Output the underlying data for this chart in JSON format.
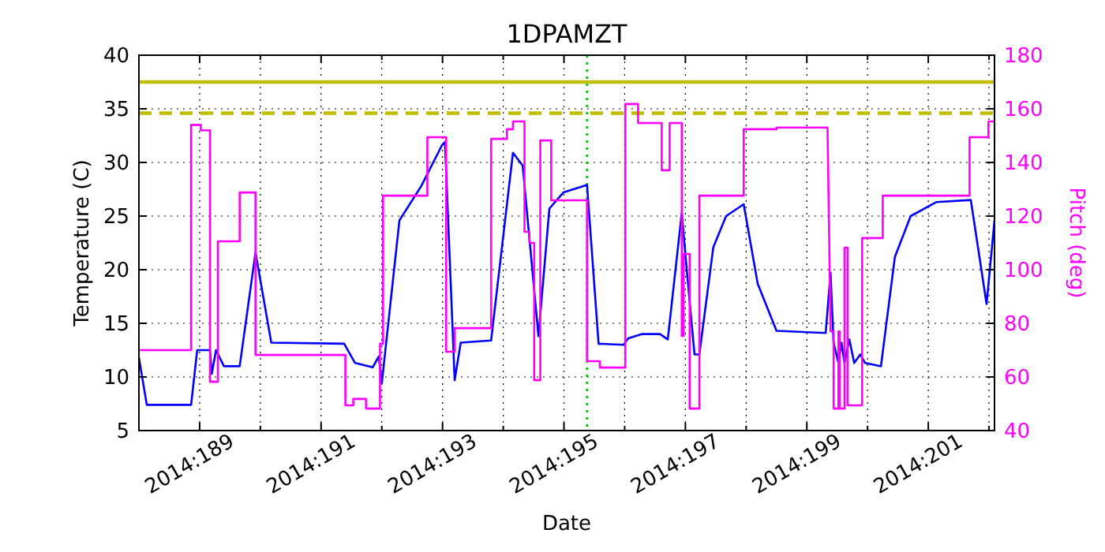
{
  "chart_data": {
    "type": "line",
    "title": "1DPAMZT",
    "xlabel": "Date",
    "ylabel": "Temperature (C)",
    "y2label": "Pitch (deg)",
    "xlim": [
      "2014-07-07T00:00",
      "2014-07-21T02:10"
    ],
    "xticks": [
      {
        "value": "2014-07-08",
        "label": "2014:189"
      },
      {
        "value": "2014-07-09",
        "label": null
      },
      {
        "value": "2014-07-10",
        "label": "2014:191"
      },
      {
        "value": "2014-07-11",
        "label": null
      },
      {
        "value": "2014-07-12",
        "label": "2014:193"
      },
      {
        "value": "2014-07-13",
        "label": null
      },
      {
        "value": "2014-07-14",
        "label": "2014:195"
      },
      {
        "value": "2014-07-15",
        "label": null
      },
      {
        "value": "2014-07-16",
        "label": "2014:197"
      },
      {
        "value": "2014-07-17",
        "label": null
      },
      {
        "value": "2014-07-18",
        "label": "2014:199"
      },
      {
        "value": "2014-07-19",
        "label": null
      },
      {
        "value": "2014-07-20",
        "label": "2014:201"
      },
      {
        "value": "2014-07-21",
        "label": null
      }
    ],
    "ylim": [
      5,
      40
    ],
    "yticks": [
      5,
      10,
      15,
      20,
      25,
      30,
      35,
      40
    ],
    "y2lim": [
      40,
      180
    ],
    "y2ticks": [
      40,
      60,
      80,
      100,
      120,
      140,
      160,
      180
    ],
    "grid": true,
    "ref_lines": [
      {
        "axis": "y",
        "value": 37.5,
        "color": "#bfbf00",
        "line_style": "solid"
      },
      {
        "axis": "y",
        "value": 34.6,
        "color": "#bfbf00",
        "line_style": "dashed"
      },
      {
        "axis": "x",
        "value": "2014-07-14T09:07",
        "color": "#00bf00",
        "line_style": "dotted"
      }
    ],
    "series": [
      {
        "color": "#0000ff",
        "x": [
          "2014-07-07T00:00",
          "2014-07-07T03:07",
          "2014-07-07T20:38",
          "2014-07-07T23:02",
          "2014-07-08T04:05",
          "2014-07-08T04:48",
          "2014-07-08T06:29",
          "2014-07-08T09:36",
          "2014-07-08T15:50",
          "2014-07-08T22:05",
          "2014-07-09T04:19",
          "2014-07-10T09:07",
          "2014-07-10T13:26",
          "2014-07-10T20:24",
          "2014-07-10T22:48",
          "2014-07-11T00:00",
          "2014-07-11T06:58",
          "2014-07-11T15:36",
          "2014-07-11T23:46",
          "2014-07-12T00:58",
          "2014-07-12T04:48",
          "2014-07-12T07:12",
          "2014-07-12T19:12",
          "2014-07-13T03:50",
          "2014-07-13T07:41",
          "2014-07-13T13:55",
          "2014-07-13T18:14",
          "2014-07-13T23:46",
          "2014-07-14T09:07",
          "2014-07-14T13:41",
          "2014-07-14T23:31",
          "2014-07-15T01:26",
          "2014-07-15T06:58",
          "2014-07-15T13:55",
          "2014-07-15T17:02",
          "2014-07-15T22:34",
          "2014-07-16T00:29",
          "2014-07-16T03:36",
          "2014-07-16T05:31",
          "2014-07-16T11:02",
          "2014-07-16T16:05",
          "2014-07-16T23:02",
          "2014-07-17T04:34",
          "2014-07-17T12:00",
          "2014-07-18T07:26",
          "2014-07-18T09:22",
          "2014-07-18T10:34",
          "2014-07-18T12:29",
          "2014-07-18T13:41",
          "2014-07-18T14:53",
          "2014-07-18T16:48",
          "2014-07-18T18:43",
          "2014-07-18T21:07",
          "2014-07-18T23:02",
          "2014-07-19T05:17",
          "2014-07-19T10:48",
          "2014-07-19T17:02",
          "2014-07-20T03:07",
          "2014-07-20T16:48",
          "2014-07-20T23:02",
          "2014-07-21T02:10"
        ],
        "values": [
          11.8,
          7.4,
          7.4,
          12.5,
          12.5,
          10.3,
          12.5,
          11.0,
          11.0,
          21.6,
          13.2,
          13.1,
          11.3,
          10.9,
          11.9,
          9.4,
          24.6,
          27.8,
          31.6,
          31.9,
          9.7,
          13.2,
          13.4,
          30.9,
          29.7,
          13.8,
          25.7,
          27.2,
          27.9,
          13.1,
          13.0,
          13.6,
          14.0,
          14.0,
          13.5,
          25.3,
          20.1,
          12.1,
          12.1,
          22.1,
          25.0,
          26.1,
          18.7,
          14.3,
          14.1,
          19.7,
          13.2,
          11.3,
          13.2,
          11.3,
          13.5,
          11.3,
          12.1,
          11.3,
          11.0,
          21.2,
          25.0,
          26.3,
          26.5,
          16.8,
          24.6
        ]
      },
      {
        "color": "#ff00ff",
        "axis": "y2",
        "x": [
          "2014-07-07T00:00",
          "2014-07-07T20:38",
          "2014-07-07T20:38",
          "2014-07-08T00:29",
          "2014-07-08T00:29",
          "2014-07-08T04:05",
          "2014-07-08T04:05",
          "2014-07-08T07:12",
          "2014-07-08T07:12",
          "2014-07-08T15:50",
          "2014-07-08T15:50",
          "2014-07-08T22:05",
          "2014-07-08T22:05",
          "2014-07-10T09:36",
          "2014-07-10T09:36",
          "2014-07-10T12:43",
          "2014-07-10T12:43",
          "2014-07-10T17:46",
          "2014-07-10T17:46",
          "2014-07-10T23:17",
          "2014-07-10T23:17",
          "2014-07-11T00:29",
          "2014-07-11T00:29",
          "2014-07-11T18:00",
          "2014-07-11T18:00",
          "2014-07-12T01:26",
          "2014-07-12T01:26",
          "2014-07-12T04:48",
          "2014-07-12T04:48",
          "2014-07-12T19:12",
          "2014-07-12T19:12",
          "2014-07-13T01:26",
          "2014-07-13T01:26",
          "2014-07-13T03:50",
          "2014-07-13T03:50",
          "2014-07-13T08:24",
          "2014-07-13T08:24",
          "2014-07-13T10:19",
          "2014-07-13T10:19",
          "2014-07-13T12:14",
          "2014-07-13T12:14",
          "2014-07-13T14:38",
          "2014-07-13T14:38",
          "2014-07-13T18:58",
          "2014-07-13T18:58",
          "2014-07-14T09:07",
          "2014-07-14T09:07",
          "2014-07-14T14:10",
          "2014-07-14T14:10",
          "2014-07-15T00:14",
          "2014-07-15T00:14",
          "2014-07-15T05:17",
          "2014-07-15T05:17",
          "2014-07-15T14:38",
          "2014-07-15T14:38",
          "2014-07-15T17:46",
          "2014-07-15T17:46",
          "2014-07-15T22:34",
          "2014-07-15T22:34",
          "2014-07-15T23:17",
          "2014-07-15T23:17",
          "2014-07-16T01:41",
          "2014-07-16T01:41",
          "2014-07-16T05:31",
          "2014-07-16T05:31",
          "2014-07-16T23:02",
          "2014-07-16T23:02",
          "2014-07-17T12:00",
          "2014-07-17T12:00",
          "2014-07-18T08:10",
          "2014-07-18T09:22",
          "2014-07-18T10:34",
          "2014-07-18T10:34",
          "2014-07-18T12:29",
          "2014-07-18T12:29",
          "2014-07-18T12:58",
          "2014-07-18T12:58",
          "2014-07-18T14:53",
          "2014-07-18T14:53",
          "2014-07-18T16:05",
          "2014-07-18T16:05",
          "2014-07-18T21:50",
          "2014-07-18T21:50",
          "2014-07-19T06:00",
          "2014-07-19T06:00",
          "2014-07-20T16:19",
          "2014-07-20T16:19",
          "2014-07-20T23:46",
          "2014-07-20T23:46",
          "2014-07-21T02:10"
        ],
        "values": [
          70,
          70,
          154,
          154,
          152,
          152,
          58.2,
          58.2,
          110.6,
          110.6,
          128.8,
          128.8,
          68.2,
          68.2,
          49.4,
          49.4,
          51.8,
          51.8,
          48.2,
          48.2,
          72.4,
          72.4,
          127.6,
          127.6,
          149.4,
          149.4,
          69.4,
          69.4,
          78.2,
          78.2,
          148.8,
          148.8,
          152.4,
          152.4,
          155.3,
          155.3,
          114.1,
          114.1,
          110,
          110,
          58.8,
          58.8,
          148.2,
          148.2,
          125.9,
          125.9,
          65.9,
          65.9,
          63.5,
          63.5,
          161.8,
          161.8,
          154.7,
          154.7,
          137.1,
          137.1,
          154.7,
          154.7,
          75.3,
          75.3,
          105.9,
          105.9,
          48.2,
          48.2,
          127.6,
          127.6,
          152.4,
          152.4,
          153,
          153,
          77,
          77,
          48.2,
          48.2,
          77,
          77,
          48.2,
          48.2,
          108.2,
          108.2,
          49.4,
          49.4,
          111.8,
          111.8,
          127.6,
          127.6,
          149.4,
          149.4,
          155.3,
          155.3
        ]
      }
    ]
  }
}
